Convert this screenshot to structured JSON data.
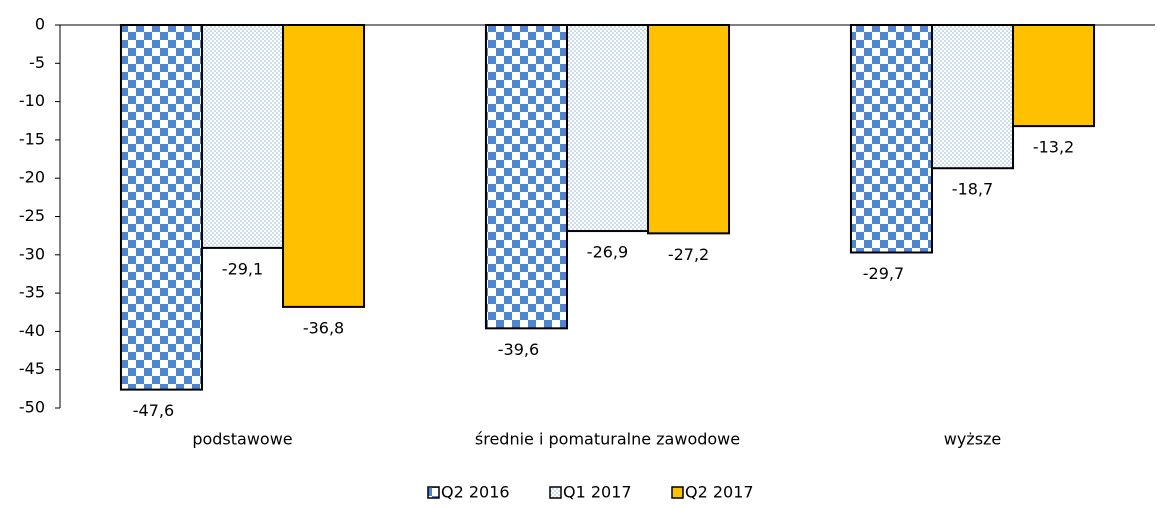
{
  "chart_data": {
    "type": "bar",
    "categories": [
      "podstawowe",
      "średnie i pomaturalne zawodowe",
      "wyższe"
    ],
    "series": [
      {
        "name": "Q2 2016",
        "color": "#4f86d2",
        "pattern": "checker",
        "values": [
          -47.6,
          -39.6,
          -29.7
        ],
        "value_labels": [
          "-47,6",
          "-39,6",
          "-29,7"
        ]
      },
      {
        "name": "Q1 2017",
        "color": "#8fb4df",
        "pattern": "dots",
        "values": [
          -29.1,
          -26.9,
          -18.7
        ],
        "value_labels": [
          "-29,1",
          "-26,9",
          "-18,7"
        ]
      },
      {
        "name": "Q2 2017",
        "color": "#ffc000",
        "pattern": "solid",
        "values": [
          -36.8,
          -27.2,
          -13.2
        ],
        "value_labels": [
          "-36,8",
          "-27,2",
          "-13,2"
        ]
      }
    ],
    "ylim": [
      -50,
      0
    ],
    "yticks": [
      0,
      -5,
      -10,
      -15,
      -20,
      -25,
      -30,
      -35,
      -40,
      -45,
      -50
    ],
    "legend": "bottom"
  }
}
